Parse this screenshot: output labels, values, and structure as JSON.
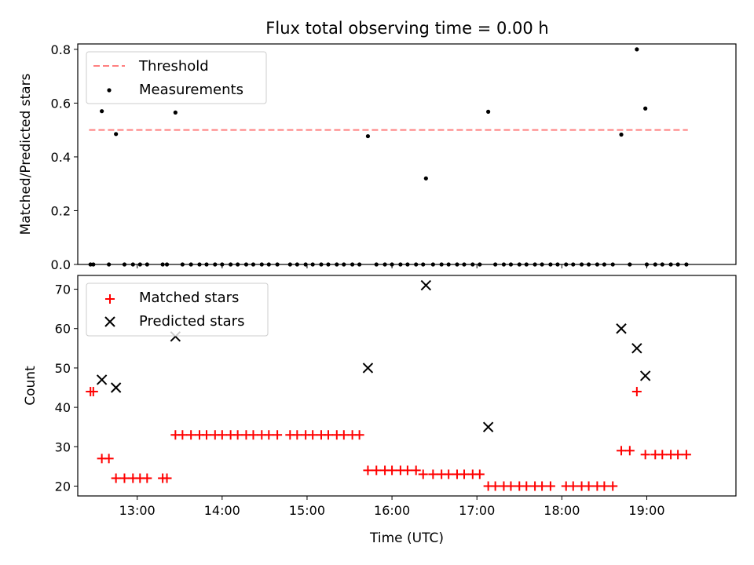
{
  "title": "Flux total observing time = 0.00 h",
  "colors": {
    "threshold": "#ff7f7f",
    "measurement": "#000000",
    "matched": "#ff0000",
    "predicted": "#000000"
  },
  "chart_data": [
    {
      "type": "scatter",
      "ylabel": "Matched/Predicted stars",
      "xlim": [
        "12:18",
        "20:03"
      ],
      "ylim": [
        0,
        0.82
      ],
      "yticks": [
        "0.0",
        "0.2",
        "0.4",
        "0.6",
        "0.8"
      ],
      "legend_position": "upper-left",
      "legend": [
        "Threshold",
        "Measurements"
      ],
      "threshold": {
        "name": "Threshold",
        "y": 0.5,
        "x_range": [
          "12:26",
          "19:29"
        ]
      },
      "series": [
        {
          "name": "Measurements",
          "points": [
            [
              "12:27",
              0
            ],
            [
              "12:29",
              0
            ],
            [
              "12:35",
              0.57
            ],
            [
              "12:40",
              0
            ],
            [
              "12:45",
              0.485
            ],
            [
              "12:51",
              0
            ],
            [
              "12:57",
              0
            ],
            [
              "13:02",
              0
            ],
            [
              "13:07",
              0
            ],
            [
              "13:18",
              0
            ],
            [
              "13:21",
              0
            ],
            [
              "13:27",
              0.565
            ],
            [
              "13:32",
              0
            ],
            [
              "13:38",
              0
            ],
            [
              "13:44",
              0
            ],
            [
              "13:49",
              0
            ],
            [
              "13:55",
              0
            ],
            [
              "14:00",
              0
            ],
            [
              "14:06",
              0
            ],
            [
              "14:11",
              0
            ],
            [
              "14:17",
              0
            ],
            [
              "14:22",
              0
            ],
            [
              "14:28",
              0
            ],
            [
              "14:33",
              0
            ],
            [
              "14:39",
              0
            ],
            [
              "14:48",
              0
            ],
            [
              "14:53",
              0
            ],
            [
              "14:59",
              0
            ],
            [
              "15:04",
              0
            ],
            [
              "15:10",
              0
            ],
            [
              "15:15",
              0
            ],
            [
              "15:21",
              0
            ],
            [
              "15:26",
              0
            ],
            [
              "15:32",
              0
            ],
            [
              "15:37",
              0
            ],
            [
              "15:43",
              0.477
            ],
            [
              "15:49",
              0
            ],
            [
              "15:55",
              0
            ],
            [
              "16:00",
              0
            ],
            [
              "16:06",
              0
            ],
            [
              "16:11",
              0
            ],
            [
              "16:17",
              0
            ],
            [
              "16:22",
              0
            ],
            [
              "16:24",
              0.32
            ],
            [
              "16:29",
              0
            ],
            [
              "16:35",
              0
            ],
            [
              "16:40",
              0
            ],
            [
              "16:46",
              0
            ],
            [
              "16:51",
              0
            ],
            [
              "16:57",
              0
            ],
            [
              "17:02",
              0
            ],
            [
              "17:08",
              0.568
            ],
            [
              "17:13",
              0
            ],
            [
              "17:19",
              0
            ],
            [
              "17:24",
              0
            ],
            [
              "17:30",
              0
            ],
            [
              "17:35",
              0
            ],
            [
              "17:41",
              0
            ],
            [
              "17:46",
              0
            ],
            [
              "17:52",
              0
            ],
            [
              "17:57",
              0
            ],
            [
              "18:03",
              0
            ],
            [
              "18:08",
              0
            ],
            [
              "18:14",
              0
            ],
            [
              "18:19",
              0
            ],
            [
              "18:25",
              0
            ],
            [
              "18:30",
              0
            ],
            [
              "18:36",
              0
            ],
            [
              "18:42",
              0.483
            ],
            [
              "18:48",
              0
            ],
            [
              "18:53",
              0.8
            ],
            [
              "18:59",
              0.58
            ],
            [
              "19:00",
              0
            ],
            [
              "19:06",
              0
            ],
            [
              "19:11",
              0
            ],
            [
              "19:17",
              0
            ],
            [
              "19:22",
              0
            ],
            [
              "19:28",
              0
            ]
          ]
        }
      ]
    },
    {
      "type": "scatter",
      "xlabel": "Time (UTC)",
      "ylabel": "Count",
      "xlim": [
        "12:18",
        "20:03"
      ],
      "ylim": [
        17.5,
        73.5
      ],
      "xticks": [
        "13:00",
        "14:00",
        "15:00",
        "16:00",
        "17:00",
        "18:00",
        "19:00"
      ],
      "yticks": [
        "20",
        "30",
        "40",
        "50",
        "60",
        "70"
      ],
      "legend_position": "upper-left",
      "legend": [
        "Matched stars",
        "Predicted stars"
      ],
      "series": [
        {
          "name": "Matched stars",
          "points": [
            [
              "12:27",
              44
            ],
            [
              "12:29",
              44
            ],
            [
              "12:35",
              27
            ],
            [
              "12:40",
              27
            ],
            [
              "12:45",
              22
            ],
            [
              "12:51",
              22
            ],
            [
              "12:57",
              22
            ],
            [
              "13:02",
              22
            ],
            [
              "13:07",
              22
            ],
            [
              "13:18",
              22
            ],
            [
              "13:21",
              22
            ],
            [
              "13:27",
              33
            ],
            [
              "13:32",
              33
            ],
            [
              "13:38",
              33
            ],
            [
              "13:44",
              33
            ],
            [
              "13:49",
              33
            ],
            [
              "13:55",
              33
            ],
            [
              "14:00",
              33
            ],
            [
              "14:06",
              33
            ],
            [
              "14:11",
              33
            ],
            [
              "14:17",
              33
            ],
            [
              "14:22",
              33
            ],
            [
              "14:28",
              33
            ],
            [
              "14:33",
              33
            ],
            [
              "14:39",
              33
            ],
            [
              "14:48",
              33
            ],
            [
              "14:53",
              33
            ],
            [
              "14:59",
              33
            ],
            [
              "15:04",
              33
            ],
            [
              "15:10",
              33
            ],
            [
              "15:15",
              33
            ],
            [
              "15:21",
              33
            ],
            [
              "15:26",
              33
            ],
            [
              "15:32",
              33
            ],
            [
              "15:37",
              33
            ],
            [
              "15:43",
              24
            ],
            [
              "15:49",
              24
            ],
            [
              "15:55",
              24
            ],
            [
              "16:00",
              24
            ],
            [
              "16:06",
              24
            ],
            [
              "16:11",
              24
            ],
            [
              "16:17",
              24
            ],
            [
              "16:22",
              23
            ],
            [
              "16:29",
              23
            ],
            [
              "16:35",
              23
            ],
            [
              "16:40",
              23
            ],
            [
              "16:46",
              23
            ],
            [
              "16:51",
              23
            ],
            [
              "16:57",
              23
            ],
            [
              "17:02",
              23
            ],
            [
              "17:08",
              20
            ],
            [
              "17:13",
              20
            ],
            [
              "17:19",
              20
            ],
            [
              "17:24",
              20
            ],
            [
              "17:30",
              20
            ],
            [
              "17:35",
              20
            ],
            [
              "17:41",
              20
            ],
            [
              "17:46",
              20
            ],
            [
              "17:52",
              20
            ],
            [
              "18:03",
              20
            ],
            [
              "18:08",
              20
            ],
            [
              "18:14",
              20
            ],
            [
              "18:19",
              20
            ],
            [
              "18:25",
              20
            ],
            [
              "18:30",
              20
            ],
            [
              "18:36",
              20
            ],
            [
              "18:42",
              29
            ],
            [
              "18:48",
              29
            ],
            [
              "18:53",
              44
            ],
            [
              "18:59",
              28
            ],
            [
              "19:06",
              28
            ],
            [
              "19:11",
              28
            ],
            [
              "19:17",
              28
            ],
            [
              "19:22",
              28
            ],
            [
              "19:28",
              28
            ]
          ]
        },
        {
          "name": "Predicted stars",
          "points": [
            [
              "12:35",
              47
            ],
            [
              "12:45",
              45
            ],
            [
              "13:27",
              58
            ],
            [
              "15:43",
              50
            ],
            [
              "16:24",
              71
            ],
            [
              "17:08",
              35
            ],
            [
              "18:42",
              60
            ],
            [
              "18:53",
              55
            ],
            [
              "18:59",
              48
            ]
          ]
        }
      ]
    }
  ]
}
